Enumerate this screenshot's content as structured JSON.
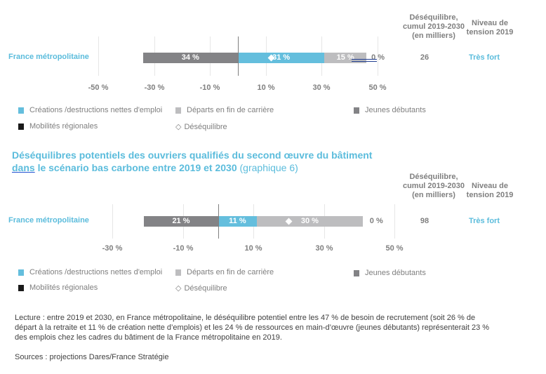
{
  "chart_data": [
    {
      "type": "bar",
      "orientation": "horizontal-stacked",
      "title": "",
      "categories": [
        "France métropolitaine"
      ],
      "xlim": [
        -50,
        50
      ],
      "xticks": [
        "-50 %",
        "-30 %",
        "-10 %",
        "10 %",
        "30 %",
        "50 %"
      ],
      "xtick_values": [
        -50,
        -30,
        -10,
        10,
        30,
        50
      ],
      "series": [
        {
          "name": "Jeunes débutants",
          "values": [
            -34
          ],
          "label": "34 %",
          "color": "#838386"
        },
        {
          "name": "Créations /destructions nettes d'emploi",
          "values": [
            31
          ],
          "label": "31 %",
          "color": "#64bedd"
        },
        {
          "name": "Départs en fin de carrière",
          "values": [
            15
          ],
          "label": "15 %",
          "color": "#bdbdbf"
        },
        {
          "name": "Mobilités régionales",
          "values": [
            0
          ],
          "label": "0 %",
          "color": "#1a1a1a"
        }
      ],
      "desequilibre_marker": 12,
      "table": {
        "col1_header": "Déséquilibre, cumul 2019-2030 (en milliers)",
        "col1_lines": [
          "Déséquilibre,",
          "cumul 2019-2030",
          "(en milliers)"
        ],
        "col2_lines": [
          "Niveau de",
          "tension 2019"
        ],
        "col1_value": "26",
        "col2_value": "Très fort"
      },
      "legend": [
        "Créations /destructions nettes d'emploi",
        "Départs en fin de carrière",
        "Jeunes débutants",
        "Mobilités régionales",
        "Déséquilibre"
      ]
    },
    {
      "type": "bar",
      "orientation": "horizontal-stacked",
      "title": "Déséquilibres potentiels des ouvriers qualifiés du second œuvre du bâtiment dans le scénario bas carbone entre 2019 et 2030 (graphique 6)",
      "categories": [
        "France métropolitaine"
      ],
      "xlim": [
        -30,
        50
      ],
      "xticks": [
        "-30 %",
        "-10 %",
        "10 %",
        "30 %",
        "50 %"
      ],
      "xtick_values": [
        -30,
        -10,
        10,
        30,
        50
      ],
      "series": [
        {
          "name": "Jeunes débutants",
          "values": [
            -21
          ],
          "label": "21 %",
          "color": "#838386"
        },
        {
          "name": "Créations /destructions nettes d'emploi",
          "values": [
            11
          ],
          "label": "11 %",
          "color": "#64bedd"
        },
        {
          "name": "Départs en fin de carrière",
          "values": [
            30
          ],
          "label": "30 %",
          "color": "#bdbdbf"
        },
        {
          "name": "Mobilités régionales",
          "values": [
            0
          ],
          "label": "0 %",
          "color": "#1a1a1a"
        }
      ],
      "desequilibre_marker": 20,
      "table": {
        "col1_lines": [
          "Déséquilibre,",
          "cumul 2019-2030",
          "(en milliers)"
        ],
        "col2_lines": [
          "Niveau de",
          "tension 2019"
        ],
        "col1_value": "98",
        "col2_value": "Très fort"
      },
      "legend": [
        "Créations /destructions nettes d'emploi",
        "Départs en fin de carrière",
        "Jeunes débutants",
        "Mobilités régionales",
        "Déséquilibre"
      ]
    }
  ],
  "title2": {
    "line1": "Déséquilibres potentiels des ouvriers qualifiés du second œuvre du bâtiment",
    "line2_underlined": "dans",
    "line2_rest": " le scénario bas carbone entre 2019 et 2030",
    "line2_paren": " (graphique 6)"
  },
  "legend": {
    "creations": "Créations /destructions nettes d'emploi",
    "departs": "Départs en fin de carrière",
    "jeunes": "Jeunes débutants",
    "mobilites": "Mobilités régionales",
    "desequilibre": "Déséquilibre",
    "colors": {
      "creations": "#64bedd",
      "departs": "#bdbdbf",
      "jeunes": "#838386",
      "mobilites": "#1a1a1a"
    }
  },
  "notes": {
    "lecture_lines": [
      "Lecture : entre 2019 et 2030, en France métropolitaine, le déséquilibre potentiel entre les 47 % de besoin de recrutement (soit 26 % de",
      "départ à la retraite et 11 % de création nette d’emplois) et les 24 % de ressources en main-d’œuvre (jeunes débutants) représenterait 23 %",
      "des emplois chez les cadres du bâtiment de la France métropolitaine en 2019."
    ],
    "sources": "Sources : projections Dares/France Stratégie"
  }
}
